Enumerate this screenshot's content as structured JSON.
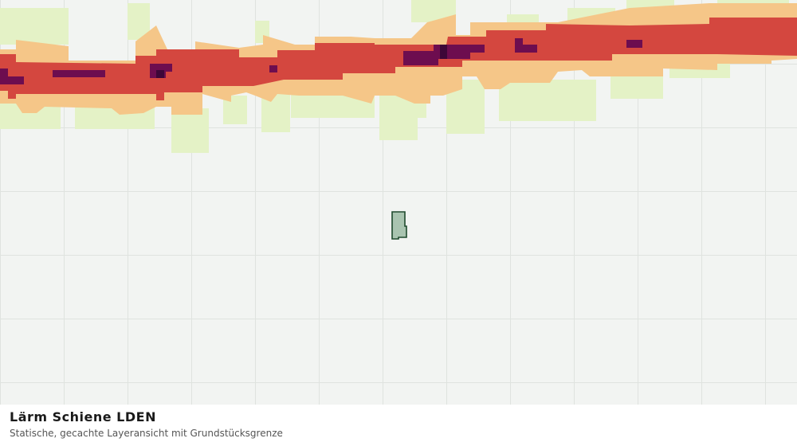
{
  "header": {
    "title": "Lärm Schiene LDEN",
    "subtitle": "Statische, gecachte Layeransicht mit Grundstücksgrenze"
  }
}
